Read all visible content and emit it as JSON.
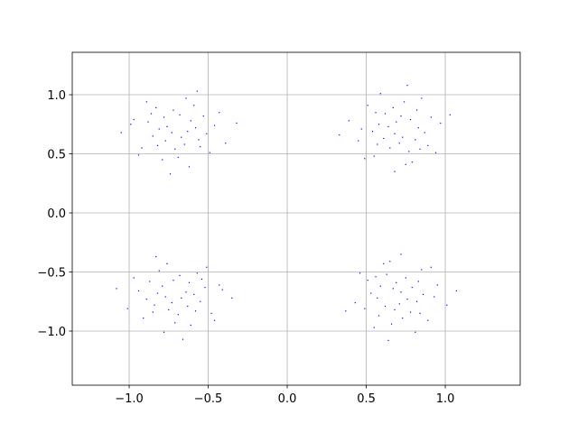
{
  "chart_data": {
    "type": "scatter",
    "color": "#0000ff",
    "grid": true,
    "xlim": [
      -1.36,
      1.474
    ],
    "ylim": [
      -1.458,
      1.359
    ],
    "xticks": [
      {
        "value": -1,
        "label": "−1.0"
      },
      {
        "value": -0.5,
        "label": "−0.5"
      },
      {
        "value": 0,
        "label": "0.0"
      },
      {
        "value": 0.5,
        "label": "0.5"
      },
      {
        "value": 1,
        "label": "1.0"
      }
    ],
    "yticks": [
      {
        "value": -1,
        "label": "−1.0"
      },
      {
        "value": -0.5,
        "label": "−0.5"
      },
      {
        "value": 0,
        "label": "0.0"
      },
      {
        "value": 0.5,
        "label": "0.5"
      },
      {
        "value": 1,
        "label": "1.0"
      }
    ],
    "x": [
      -0.65,
      -0.88,
      -0.59,
      -0.73,
      -0.46,
      -0.79,
      -0.56,
      -0.92,
      -0.68,
      -0.83,
      -0.39,
      -0.76,
      -0.62,
      -0.97,
      -0.53,
      -0.71,
      -0.58,
      -0.85,
      -0.64,
      -1.05,
      -0.49,
      -0.78,
      -0.67,
      -0.89,
      -0.43,
      -0.74,
      -0.55,
      -0.81,
      -0.61,
      -0.94,
      -0.32,
      -0.72,
      -0.51,
      -0.86,
      -0.69,
      -0.77,
      -0.57,
      -0.99,
      -0.63,
      -0.82,
      0.58,
      0.77,
      0.91,
      0.68,
      0.74,
      0.45,
      0.62,
      0.55,
      0.83,
      0.89,
      0.59,
      0.73,
      0.39,
      0.79,
      0.82,
      0.54,
      0.72,
      0.65,
      0.97,
      0.68,
      0.51,
      0.81,
      0.64,
      0.94,
      0.85,
      0.33,
      0.56,
      0.71,
      0.78,
      0.49,
      0.76,
      0.87,
      0.67,
      0.84,
      0.47,
      0.61,
      1.03,
      0.75,
      0.69,
      0.57,
      -0.75,
      -0.52,
      -0.81,
      -0.67,
      -0.94,
      -0.61,
      -0.84,
      -0.48,
      -0.72,
      -0.57,
      -1.01,
      -0.64,
      -0.78,
      -0.43,
      -0.87,
      -0.69,
      -0.82,
      -0.55,
      -0.76,
      -0.35,
      -0.91,
      -0.62,
      -0.73,
      -0.51,
      -0.97,
      -0.66,
      -0.85,
      -0.59,
      -0.79,
      -0.46,
      -1.08,
      -0.68,
      -0.89,
      -0.54,
      -0.71,
      -0.63,
      -0.83,
      -0.41,
      -0.77,
      -0.58,
      0.82,
      0.63,
      0.49,
      0.72,
      0.66,
      0.95,
      0.78,
      0.85,
      0.57,
      0.51,
      0.81,
      0.67,
      1.01,
      0.61,
      0.58,
      0.86,
      0.68,
      0.75,
      0.43,
      0.72,
      0.89,
      0.59,
      0.76,
      0.46,
      0.55,
      1.07,
      0.84,
      0.69,
      0.62,
      0.91,
      0.64,
      0.53,
      0.73,
      0.56,
      0.93,
      0.79,
      0.37,
      0.65,
      0.71,
      0.83
    ],
    "values": [
      0.58,
      0.77,
      0.91,
      0.68,
      0.74,
      0.45,
      0.62,
      0.55,
      0.83,
      0.89,
      0.59,
      0.73,
      0.39,
      0.79,
      0.82,
      0.54,
      0.72,
      0.65,
      0.97,
      0.68,
      0.51,
      0.81,
      0.64,
      0.94,
      0.85,
      0.33,
      0.56,
      0.71,
      0.78,
      0.49,
      0.76,
      0.87,
      0.67,
      0.84,
      0.47,
      0.61,
      1.03,
      0.75,
      0.69,
      0.57,
      0.75,
      0.52,
      0.81,
      0.67,
      0.94,
      0.61,
      0.84,
      0.48,
      0.72,
      0.57,
      1.01,
      0.64,
      0.78,
      0.43,
      0.87,
      0.69,
      0.82,
      0.55,
      0.76,
      0.35,
      0.91,
      0.62,
      0.73,
      0.51,
      0.97,
      0.66,
      0.85,
      0.59,
      0.79,
      0.46,
      1.08,
      0.68,
      0.89,
      0.54,
      0.71,
      0.63,
      0.83,
      0.41,
      0.77,
      0.58,
      -0.82,
      -0.63,
      -0.49,
      -0.72,
      -0.66,
      -0.95,
      -0.78,
      -0.85,
      -0.57,
      -0.51,
      -0.81,
      -0.67,
      -1.01,
      -0.61,
      -0.58,
      -0.86,
      -0.68,
      -0.75,
      -0.43,
      -0.72,
      -0.89,
      -0.59,
      -0.76,
      -0.46,
      -0.55,
      -1.07,
      -0.84,
      -0.69,
      -0.62,
      -0.91,
      -0.64,
      -0.53,
      -0.73,
      -0.56,
      -0.93,
      -0.79,
      -0.37,
      -0.65,
      -0.71,
      -0.83,
      -0.75,
      -0.52,
      -0.81,
      -0.67,
      -0.94,
      -0.61,
      -0.84,
      -0.48,
      -0.72,
      -0.57,
      -1.01,
      -0.64,
      -0.78,
      -0.43,
      -0.87,
      -0.69,
      -0.82,
      -0.55,
      -0.76,
      -0.35,
      -0.91,
      -0.62,
      -0.73,
      -0.51,
      -0.97,
      -0.66,
      -0.85,
      -0.59,
      -0.79,
      -0.46,
      -1.08,
      -0.68,
      -0.89,
      -0.54,
      -0.71,
      -0.63,
      -0.83,
      -0.41,
      -0.77,
      -0.58
    ]
  }
}
